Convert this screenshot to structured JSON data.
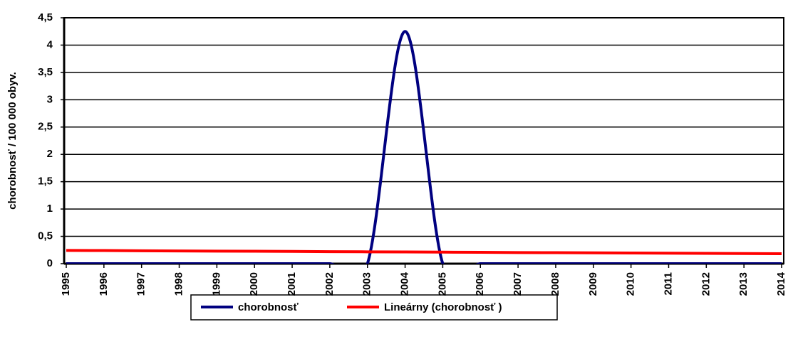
{
  "chart_data": {
    "type": "line",
    "y_label": "chorobnosť / 100 000 obyv.",
    "categories": [
      "1995",
      "1996",
      "1997",
      "1998",
      "1999",
      "2000",
      "2001",
      "2002",
      "2003",
      "2004",
      "2005",
      "2006",
      "2007",
      "2008",
      "2009",
      "2010",
      "2011",
      "2012",
      "2013",
      "2014"
    ],
    "series": [
      {
        "name": "chorobnosť",
        "color": "#000080",
        "smooth": true,
        "values": [
          0,
          0,
          0,
          0,
          0,
          0,
          0,
          0,
          0,
          4.25,
          0,
          0,
          0,
          0,
          0,
          0,
          0,
          0,
          0,
          0
        ]
      },
      {
        "name": "Lineárny (chorobnosť )",
        "color": "#ff0000",
        "smooth": false,
        "values": [
          0.243,
          0.24,
          0.236,
          0.233,
          0.23,
          0.227,
          0.224,
          0.22,
          0.217,
          0.214,
          0.211,
          0.208,
          0.204,
          0.201,
          0.198,
          0.195,
          0.192,
          0.188,
          0.185,
          0.182
        ]
      }
    ],
    "ylim": [
      0,
      4.5
    ],
    "yticks": [
      0,
      {
        "value": 0.5,
        "label": "0,5"
      },
      1,
      {
        "value": 1.5,
        "label": "1,5"
      },
      2,
      {
        "value": 2.5,
        "label": "2,5"
      },
      3,
      {
        "value": 3.5,
        "label": "3,5"
      },
      4,
      {
        "value": 4.5,
        "label": "4,5"
      }
    ],
    "grid": true,
    "legend": "bottom"
  }
}
